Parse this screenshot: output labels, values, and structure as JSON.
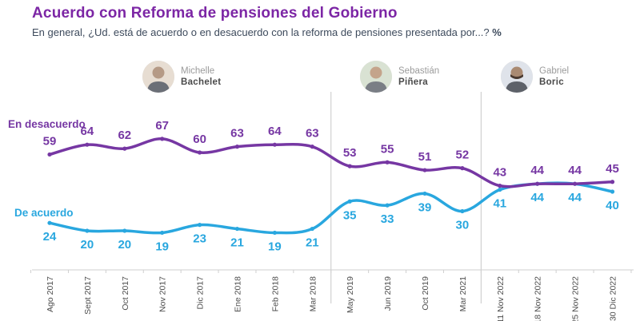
{
  "header": {
    "title": "Acuerdo con Reforma de pensiones del Gobierno",
    "subtitle": "En general, ¿Ud. está de acuerdo o en desacuerdo con la reforma de pensiones presentada por...? ",
    "subtitle_suffix": "%"
  },
  "presidents": [
    {
      "first": "Michelle",
      "last": "Bachelet"
    },
    {
      "first": "Sebastián",
      "last": "Piñera"
    },
    {
      "first": "Gabriel",
      "last": "Boric"
    }
  ],
  "colors": {
    "title_purple": "#7C26A5",
    "disagree_purple": "#7637A3",
    "agree_blue": "#29A7DF",
    "axis_gray": "#CFCFCF",
    "divider_gray": "#C8C8C8",
    "xlabel_gray": "#4D4D4D"
  },
  "chart_data": {
    "type": "line",
    "title": "Acuerdo con Reforma de pensiones del Gobierno",
    "xlabel": "",
    "ylabel": "",
    "ylim": [
      0,
      100
    ],
    "grid": false,
    "legend_position": "inline-left",
    "categories": [
      "Ago 2017",
      "Sept 2017",
      "Oct 2017",
      "Nov 2017",
      "Dic 2017",
      "Ene 2018",
      "Feb 2018",
      "Mar 2018",
      "May 2019",
      "Jun 2019",
      "Oct 2019",
      "Mar 2021",
      "11 Nov 2022",
      "18 Nov 2022",
      "25 Nov 2022",
      "30 Dic 2022"
    ],
    "series": [
      {
        "name": "En desacuerdo",
        "color": "#7637A3",
        "label_side": "above",
        "values": [
          59,
          64,
          62,
          67,
          60,
          63,
          64,
          63,
          53,
          55,
          51,
          52,
          43,
          44,
          44,
          45
        ]
      },
      {
        "name": "De acuerdo",
        "color": "#29A7DF",
        "label_side": "below",
        "values": [
          24,
          20,
          20,
          19,
          23,
          21,
          19,
          21,
          35,
          33,
          39,
          30,
          41,
          44,
          44,
          40
        ]
      }
    ],
    "era_dividers_after_index": [
      7,
      11
    ],
    "annotations": [
      "Michelle Bachelet",
      "Sebastián Piñera",
      "Gabriel Boric"
    ]
  }
}
